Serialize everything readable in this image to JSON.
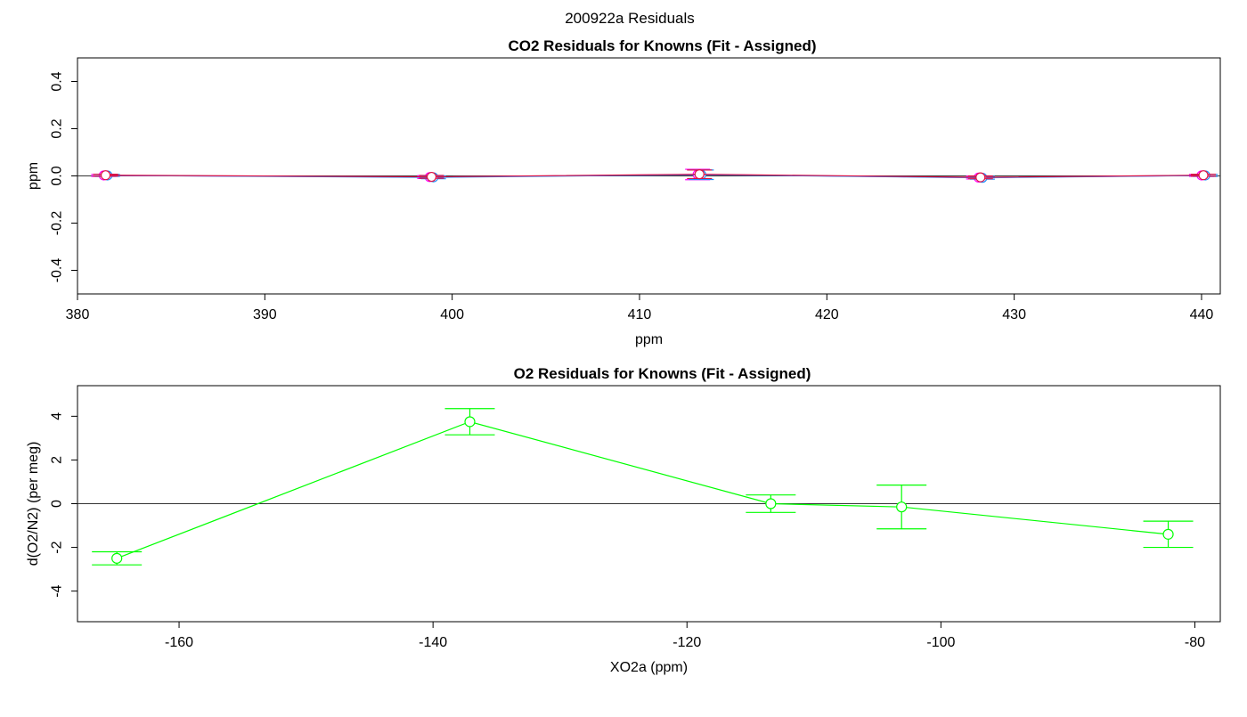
{
  "page_title": "200922a  Residuals",
  "chart_data": [
    {
      "type": "scatter",
      "title": "CO2 Residuals for Knowns (Fit - Assigned)",
      "xlabel": "ppm",
      "ylabel": "ppm",
      "xlim": [
        380,
        441
      ],
      "ylim": [
        -0.5,
        0.5
      ],
      "xticks": [
        380,
        390,
        400,
        410,
        420,
        430,
        440
      ],
      "yticks": [
        -0.4,
        -0.2,
        0.0,
        0.2,
        0.4
      ],
      "xtick_labels": [
        "380",
        "390",
        "400",
        "410",
        "420",
        "430",
        "440"
      ],
      "ytick_labels": [
        "-0.4",
        "-0.2",
        "0.0",
        "0.2",
        "0.4"
      ],
      "zero_line": true,
      "grid": false,
      "series": [
        {
          "color": "#ff00ff",
          "marker": "open-circle",
          "points": [
            {
              "x": 381.4,
              "y": 0.002,
              "err": 0.004
            },
            {
              "x": 398.8,
              "y": -0.005,
              "err": 0.006
            },
            {
              "x": 413.1,
              "y": 0.006,
              "err": 0.022
            },
            {
              "x": 428.1,
              "y": -0.007,
              "err": 0.006
            },
            {
              "x": 440.0,
              "y": 0.002,
              "err": 0.004
            }
          ]
        },
        {
          "color": "#1e90ff",
          "marker": "open-circle",
          "points": [
            {
              "x": 381.6,
              "y": 0.002,
              "err": 0.004
            },
            {
              "x": 399.0,
              "y": -0.006,
              "err": 0.006
            },
            {
              "x": 413.3,
              "y": 0.005,
              "err": 0.02
            },
            {
              "x": 428.3,
              "y": -0.008,
              "err": 0.006
            },
            {
              "x": 440.2,
              "y": 0.002,
              "err": 0.004
            }
          ]
        },
        {
          "color": "#dd1144",
          "marker": "open-circle",
          "points": [
            {
              "x": 381.5,
              "y": 0.003,
              "err": 0.004
            },
            {
              "x": 398.9,
              "y": -0.004,
              "err": 0.006
            },
            {
              "x": 413.2,
              "y": 0.007,
              "err": 0.018
            },
            {
              "x": 428.2,
              "y": -0.006,
              "err": 0.006
            },
            {
              "x": 440.1,
              "y": 0.003,
              "err": 0.004
            }
          ]
        }
      ]
    },
    {
      "type": "line",
      "title": "O2 Residuals for Knowns (Fit - Assigned)",
      "xlabel": "XO2a (ppm)",
      "ylabel": "d(O2/N2) (per meg)",
      "xlim": [
        -168,
        -78
      ],
      "ylim": [
        -5.4,
        5.4
      ],
      "xticks": [
        -160,
        -140,
        -120,
        -100,
        -80
      ],
      "yticks": [
        -4,
        -2,
        0,
        2,
        4
      ],
      "xtick_labels": [
        "-160",
        "-140",
        "-120",
        "-100",
        "-80"
      ],
      "ytick_labels": [
        "-4",
        "-2",
        "0",
        "2",
        "4"
      ],
      "zero_line": true,
      "grid": false,
      "series": [
        {
          "color": "#00ff00",
          "marker": "open-circle",
          "points": [
            {
              "x": -164.9,
              "y": -2.5,
              "err": 0.3
            },
            {
              "x": -137.1,
              "y": 3.75,
              "err": 0.6
            },
            {
              "x": -113.4,
              "y": 0.0,
              "err": 0.4
            },
            {
              "x": -103.1,
              "y": -0.15,
              "err": 1.0
            },
            {
              "x": -82.1,
              "y": -1.4,
              "err": 0.6
            }
          ]
        }
      ]
    }
  ]
}
